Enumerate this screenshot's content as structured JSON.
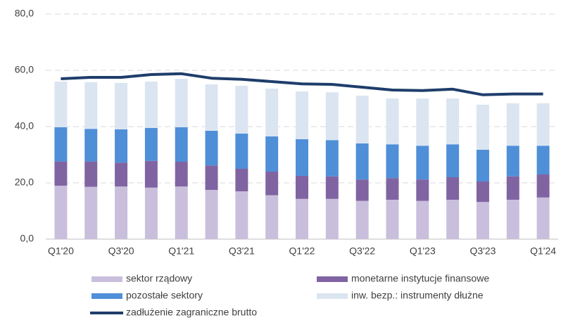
{
  "chart_data": {
    "type": "bar",
    "stacked": true,
    "categories": [
      "Q1'20",
      null,
      "Q3'20",
      null,
      "Q1'21",
      null,
      "Q3'21",
      null,
      "Q1'22",
      null,
      "Q3'22",
      null,
      "Q1'23",
      null,
      "Q3'23",
      null,
      "Q1'24"
    ],
    "series": [
      {
        "name": "sektor rządowy",
        "type": "bar",
        "color": "#c9bfdc",
        "values": [
          19,
          18.6,
          18.7,
          18.3,
          18.7,
          17.5,
          17,
          15.6,
          14.3,
          14.3,
          13.6,
          14,
          13.6,
          14,
          13.2,
          14,
          14.8
        ]
      },
      {
        "name": "monetarne instytucje finansowe",
        "type": "bar",
        "color": "#8064a2",
        "values": [
          8.6,
          9.0,
          8.5,
          9.5,
          8.8,
          8.7,
          8.0,
          8.4,
          8.2,
          8.0,
          7.6,
          7.7,
          7.6,
          8.0,
          7.3,
          8.3,
          8.2
        ]
      },
      {
        "name": "pozostałe sektory",
        "type": "bar",
        "color": "#4f8fd8",
        "values": [
          12.2,
          11.6,
          11.8,
          11.7,
          12.3,
          12.3,
          12.5,
          12.5,
          13.0,
          12.9,
          12.8,
          12.0,
          12.0,
          11.7,
          11.3,
          10.9,
          10.2
        ]
      },
      {
        "name": "inw. bezp.: instrumenty dłużne",
        "type": "bar",
        "color": "#dbe5f1",
        "values": [
          16.2,
          16.6,
          16.5,
          16.5,
          17.2,
          16.5,
          17.0,
          17.0,
          17.0,
          17.0,
          17.0,
          16.3,
          16.8,
          16.3,
          16.0,
          15.1,
          15.1
        ]
      },
      {
        "name": "zadłużenie zagraniczne brutto",
        "type": "line",
        "color": "#1f3d6b",
        "values": [
          57,
          57.5,
          57.5,
          58.5,
          58.8,
          57.2,
          56.8,
          56,
          55.2,
          55,
          54,
          53,
          52.8,
          53.3,
          51.3,
          51.6,
          51.6
        ]
      }
    ],
    "ylim": [
      0,
      80
    ],
    "yticks": [
      {
        "value": 0,
        "label": "0,0"
      },
      {
        "value": 20,
        "label": "20,0"
      },
      {
        "value": 40,
        "label": "40,0"
      },
      {
        "value": 60,
        "label": "60,0"
      },
      {
        "value": 80,
        "label": "80,0"
      }
    ],
    "grid": true,
    "legend": "bottom"
  }
}
